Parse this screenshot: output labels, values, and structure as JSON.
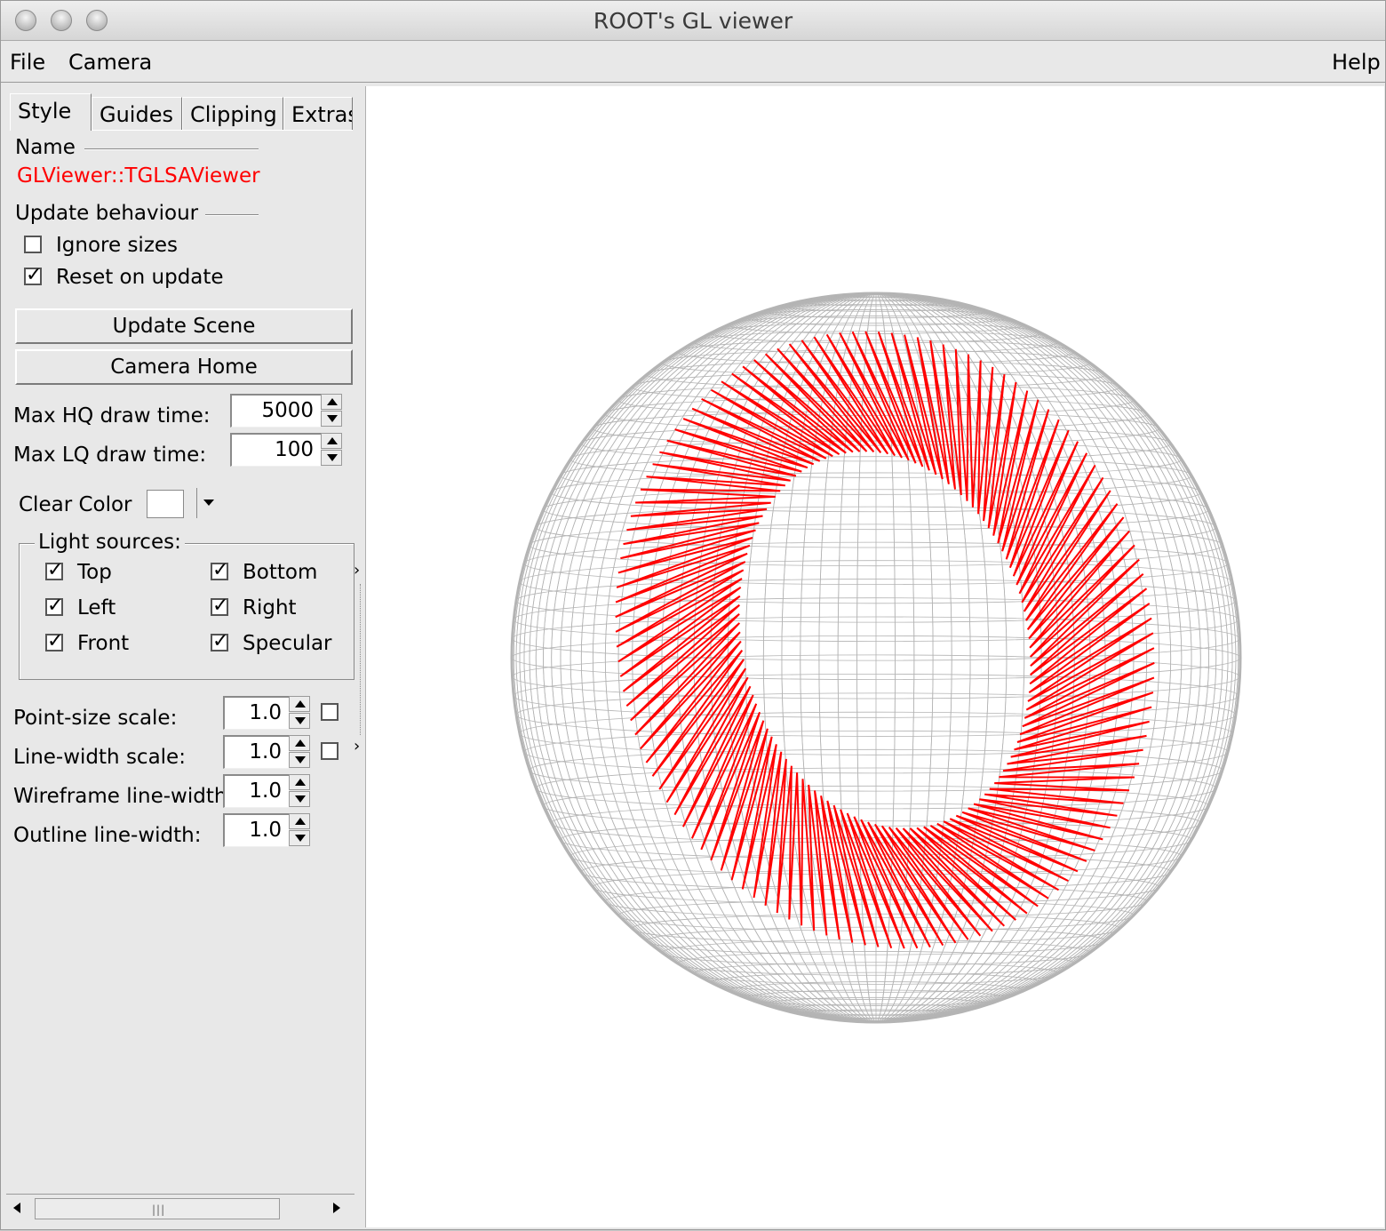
{
  "window": {
    "title": "ROOT's GL viewer"
  },
  "menubar": {
    "file": "File",
    "camera": "Camera",
    "help": "Help"
  },
  "tabs": [
    {
      "label": "Style"
    },
    {
      "label": "Guides"
    },
    {
      "label": "Clipping"
    },
    {
      "label": "Extras"
    }
  ],
  "style": {
    "name_label": "Name",
    "name_value": "GLViewer::TGLSAViewer",
    "update_behaviour_label": "Update behaviour",
    "ignore_sizes": {
      "label": "Ignore sizes",
      "checked": false
    },
    "reset_on_update": {
      "label": "Reset on update",
      "checked": true
    },
    "update_scene_label": "Update Scene",
    "camera_home_label": "Camera Home",
    "max_hq": {
      "label": "Max HQ draw time:",
      "value": "5000"
    },
    "max_lq": {
      "label": "Max LQ draw time:",
      "value": "100"
    },
    "clear_color": {
      "label": "Clear Color",
      "color": "#ffffff"
    },
    "light_sources_label": "Light sources:",
    "lights": {
      "top": {
        "label": "Top",
        "checked": true
      },
      "bottom": {
        "label": "Bottom",
        "checked": true
      },
      "left": {
        "label": "Left",
        "checked": true
      },
      "right": {
        "label": "Right",
        "checked": true
      },
      "front": {
        "label": "Front",
        "checked": true
      },
      "specular": {
        "label": "Specular",
        "checked": true
      }
    },
    "point_size_scale": {
      "label": "Point-size scale:",
      "value": "1.0",
      "checked": false
    },
    "line_width_scale": {
      "label": "Line-width scale:",
      "value": "1.0",
      "checked": false
    },
    "wireframe_line_width": {
      "label": "Wireframe line-width",
      "value": "1.0"
    },
    "outline_line_width": {
      "label": "Outline line-width:",
      "value": "1.0"
    }
  },
  "colors": {
    "name_value": "#ff0000",
    "sphere_wire": "#b4b4b4",
    "spiral": "#ff0000",
    "viewer_bg": "#ffffff"
  },
  "icons": {
    "scroll_left": "triangle-left-icon",
    "scroll_right": "triangle-right-icon",
    "grip": "grip-icon"
  }
}
